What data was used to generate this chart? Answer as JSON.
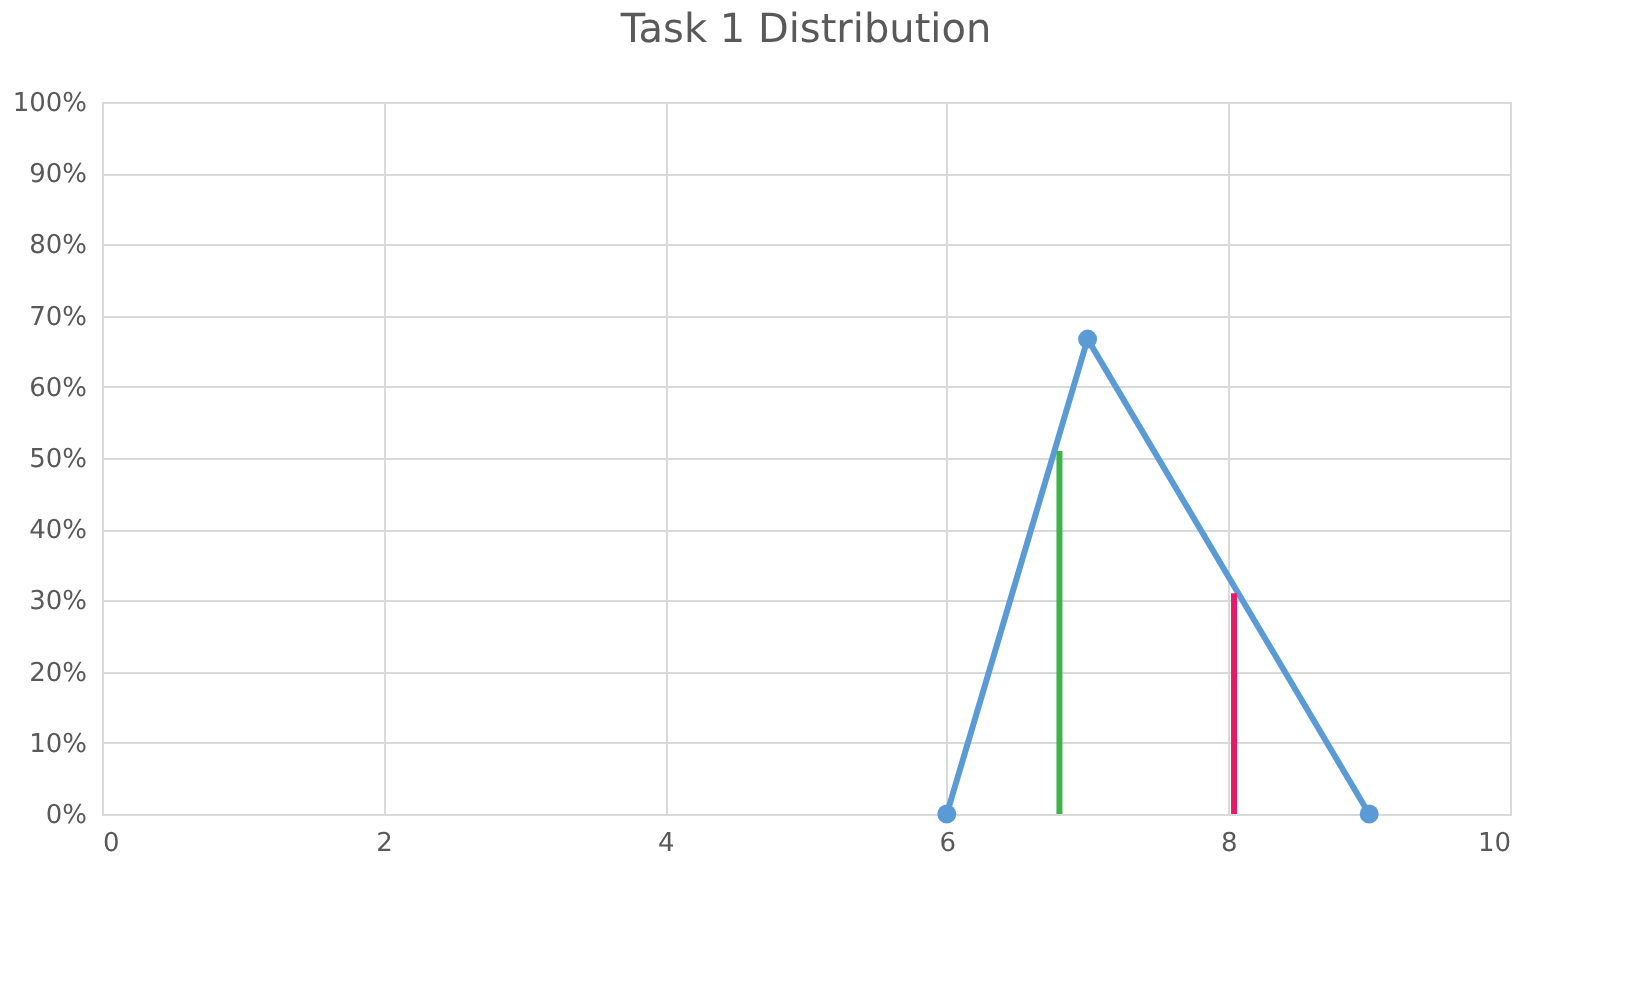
{
  "chart_data": {
    "type": "line",
    "title": "Task 1 Distribution",
    "xlim": [
      0,
      10
    ],
    "xticks": [
      0,
      2,
      4,
      6,
      8,
      10
    ],
    "ylim": [
      0,
      100
    ],
    "yticks": [
      {
        "value": 0,
        "label": "0%"
      },
      {
        "value": 10,
        "label": "10%"
      },
      {
        "value": 20,
        "label": "20%"
      },
      {
        "value": 30,
        "label": "30%"
      },
      {
        "value": 40,
        "label": "40%"
      },
      {
        "value": 50,
        "label": "50%"
      },
      {
        "value": 60,
        "label": "60%"
      },
      {
        "value": 70,
        "label": "70%"
      },
      {
        "value": 80,
        "label": "80%"
      },
      {
        "value": 90,
        "label": "90%"
      },
      {
        "value": 100,
        "label": "100%"
      }
    ],
    "grid": true,
    "series": [
      {
        "color": "#5b9bd5",
        "x": [
          6,
          7,
          9
        ],
        "values": [
          0,
          66.7,
          0
        ],
        "marker": "circle"
      },
      {
        "color": "#3cb44b",
        "x": [
          6.8,
          6.8
        ],
        "values": [
          0,
          51
        ],
        "marker": "none"
      },
      {
        "color": "#e6196b",
        "x": [
          8.04,
          8.04
        ],
        "values": [
          0,
          31
        ],
        "marker": "none"
      }
    ]
  }
}
